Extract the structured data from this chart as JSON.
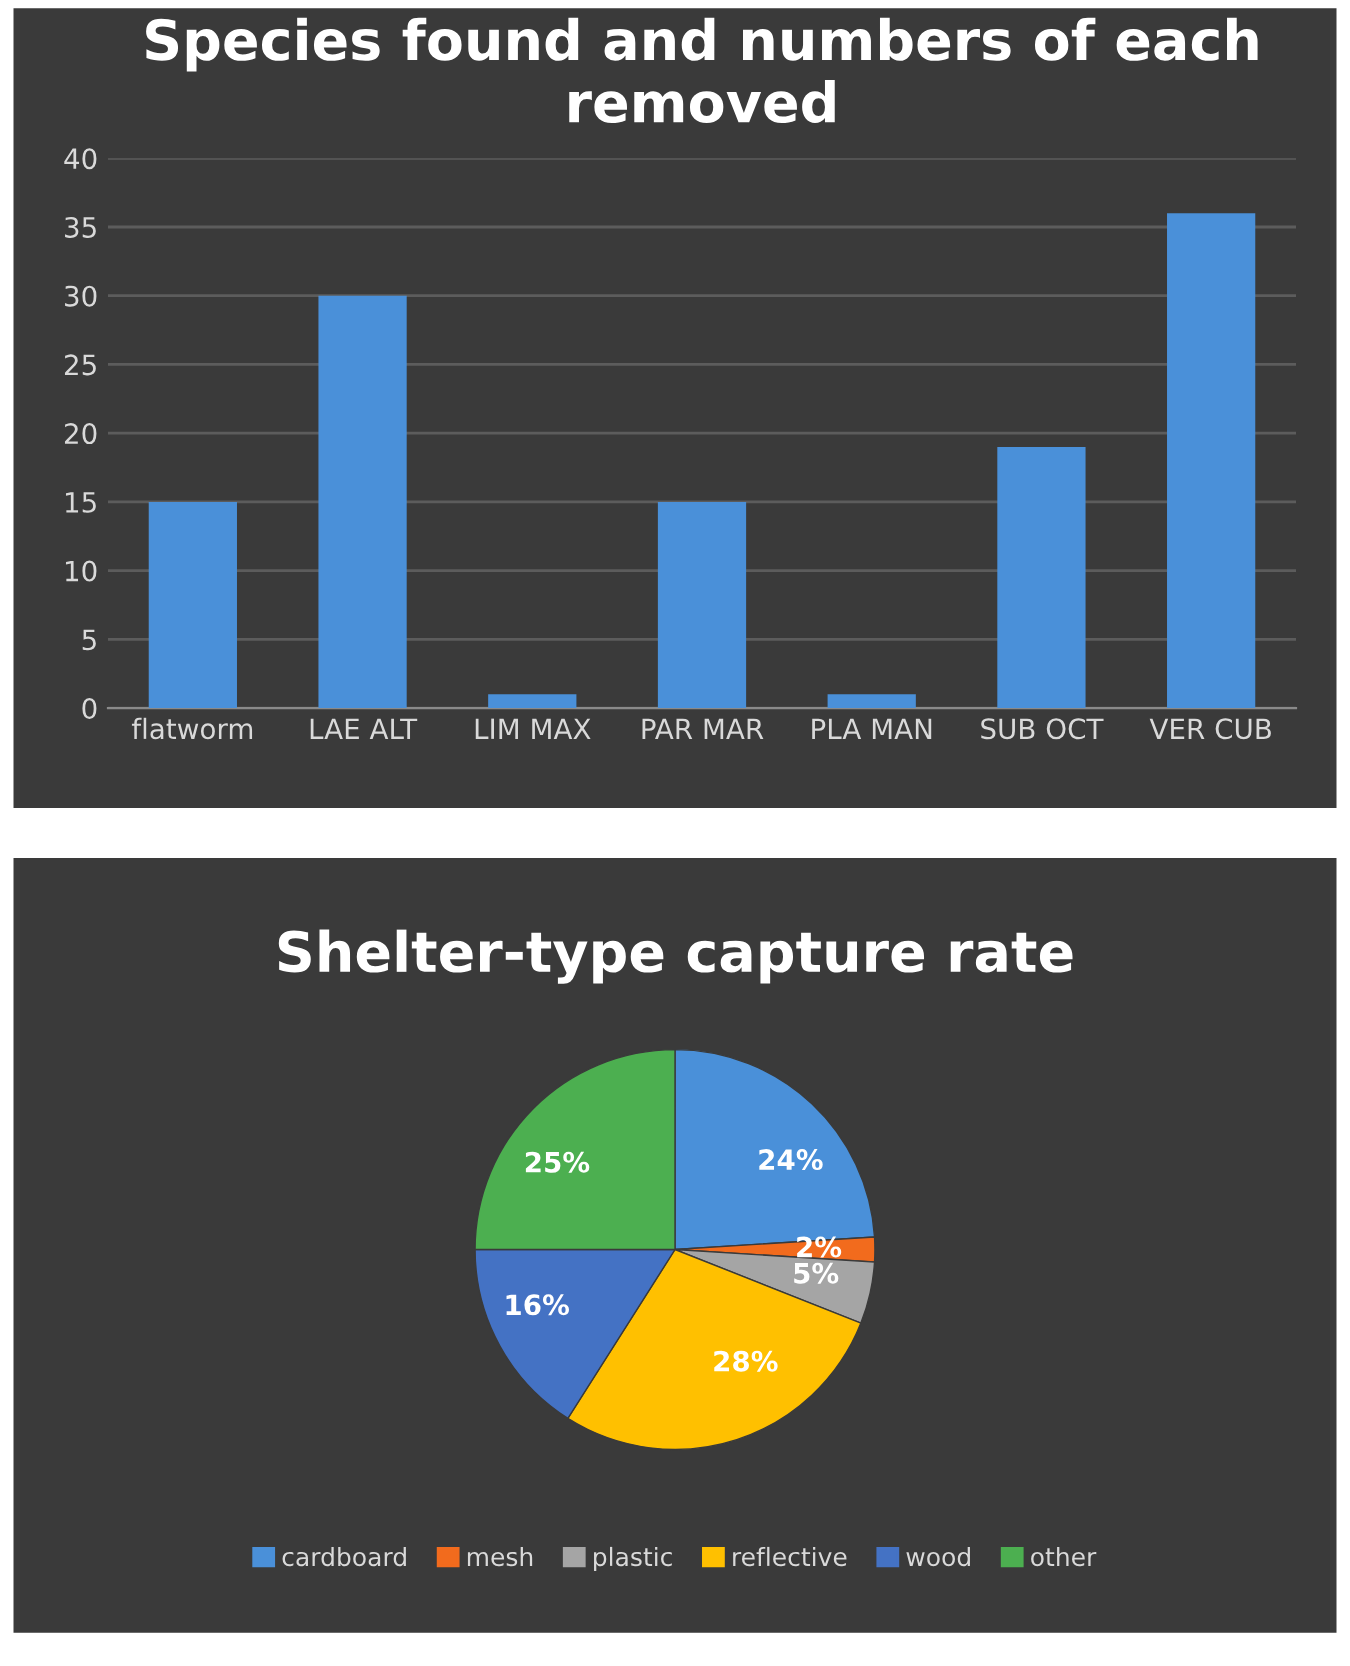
{
  "chart_data": [
    {
      "type": "bar",
      "title": "Species found and numbers of each removed",
      "categories": [
        "flatworm",
        "LAE ALT",
        "LIM MAX",
        "PAR MAR",
        "PLA MAN",
        "SUB OCT",
        "VER CUB"
      ],
      "values": [
        15,
        30,
        1,
        15,
        1,
        19,
        36
      ],
      "color": "#4a90d9",
      "ylim": [
        0,
        40
      ],
      "yticks": [
        0,
        5,
        10,
        15,
        20,
        25,
        30,
        35,
        40
      ],
      "grid": "y"
    },
    {
      "type": "pie",
      "title": "Shelter-type capture rate",
      "categories": [
        "cardboard",
        "mesh",
        "plastic",
        "reflective",
        "wood",
        "other"
      ],
      "values": [
        24,
        2,
        5,
        28,
        16,
        25
      ],
      "colors": [
        "#4a90d9",
        "#f26b1d",
        "#a5a5a5",
        "#ffc000",
        "#4472c4",
        "#4caf50"
      ],
      "value_labels": [
        "24%",
        "2%",
        "5%",
        "28%",
        "16%",
        "25%"
      ],
      "legend": "bottom"
    }
  ]
}
